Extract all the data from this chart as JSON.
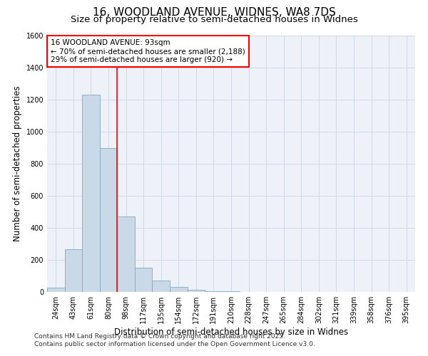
{
  "title_line1": "16, WOODLAND AVENUE, WIDNES, WA8 7DS",
  "title_line2": "Size of property relative to semi-detached houses in Widnes",
  "xlabel": "Distribution of semi-detached houses by size in Widnes",
  "ylabel": "Number of semi-detached properties",
  "categories": [
    "24sqm",
    "43sqm",
    "61sqm",
    "80sqm",
    "98sqm",
    "117sqm",
    "135sqm",
    "154sqm",
    "172sqm",
    "191sqm",
    "210sqm",
    "228sqm",
    "247sqm",
    "265sqm",
    "284sqm",
    "302sqm",
    "321sqm",
    "339sqm",
    "358sqm",
    "376sqm",
    "395sqm"
  ],
  "values": [
    25,
    265,
    1230,
    900,
    470,
    150,
    70,
    30,
    15,
    5,
    5,
    2,
    0,
    0,
    0,
    0,
    0,
    0,
    0,
    0,
    0
  ],
  "bar_color": "#c9d9e8",
  "bar_edge_color": "#7faac8",
  "vline_color": "red",
  "vline_x": 3.5,
  "annotation_title": "16 WOODLAND AVENUE: 93sqm",
  "annotation_line1": "← 70% of semi-detached houses are smaller (2,188)",
  "annotation_line2": "29% of semi-detached houses are larger (920) →",
  "ylim": [
    0,
    1600
  ],
  "yticks": [
    0,
    200,
    400,
    600,
    800,
    1000,
    1200,
    1400,
    1600
  ],
  "grid_color": "#d0d8e8",
  "background_color": "#eef2f8",
  "footer_line1": "Contains HM Land Registry data © Crown copyright and database right 2025.",
  "footer_line2": "Contains public sector information licensed under the Open Government Licence v3.0.",
  "title_fontsize": 11,
  "subtitle_fontsize": 9.5,
  "axis_label_fontsize": 8.5,
  "tick_fontsize": 7,
  "annotation_fontsize": 7.5,
  "footer_fontsize": 6.5
}
